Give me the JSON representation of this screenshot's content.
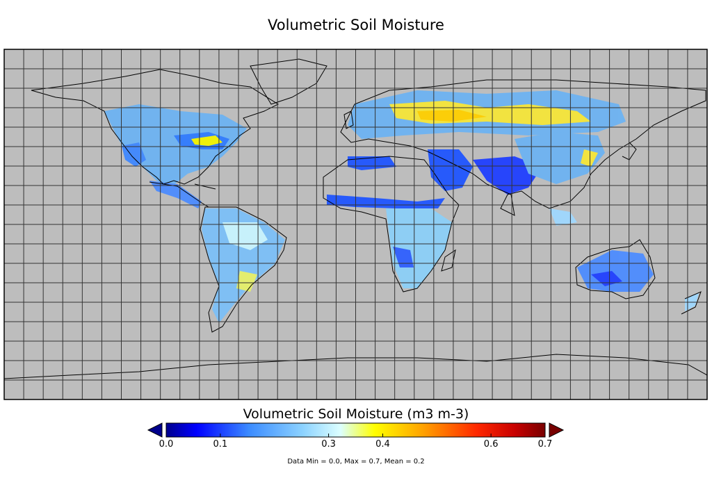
{
  "map": {
    "title": "Volumetric Soil Moisture",
    "projection": "equirectangular",
    "background_color": "#bdbdbd",
    "grid": true,
    "grid_spacing_degrees": 10,
    "coastline_color": "#000000"
  },
  "colorbar": {
    "title": "Volumetric Soil Moisture (m3 m-3)",
    "tick_labels": [
      "0.0",
      "0.1",
      "0.3",
      "0.4",
      "0.6",
      "0.7"
    ],
    "tick_values": [
      0.0,
      0.1,
      0.3,
      0.4,
      0.6,
      0.7
    ],
    "min": 0.0,
    "max": 0.7,
    "extend": "both",
    "colormap": [
      "#00008c",
      "#0000ff",
      "#3c8cff",
      "#8cd2ff",
      "#dcffff",
      "#ffff00",
      "#ffa000",
      "#ff2800",
      "#c80000",
      "#780000"
    ]
  },
  "stats": "Data Min = 0.0, Max = 0.7, Mean = 0.2"
}
